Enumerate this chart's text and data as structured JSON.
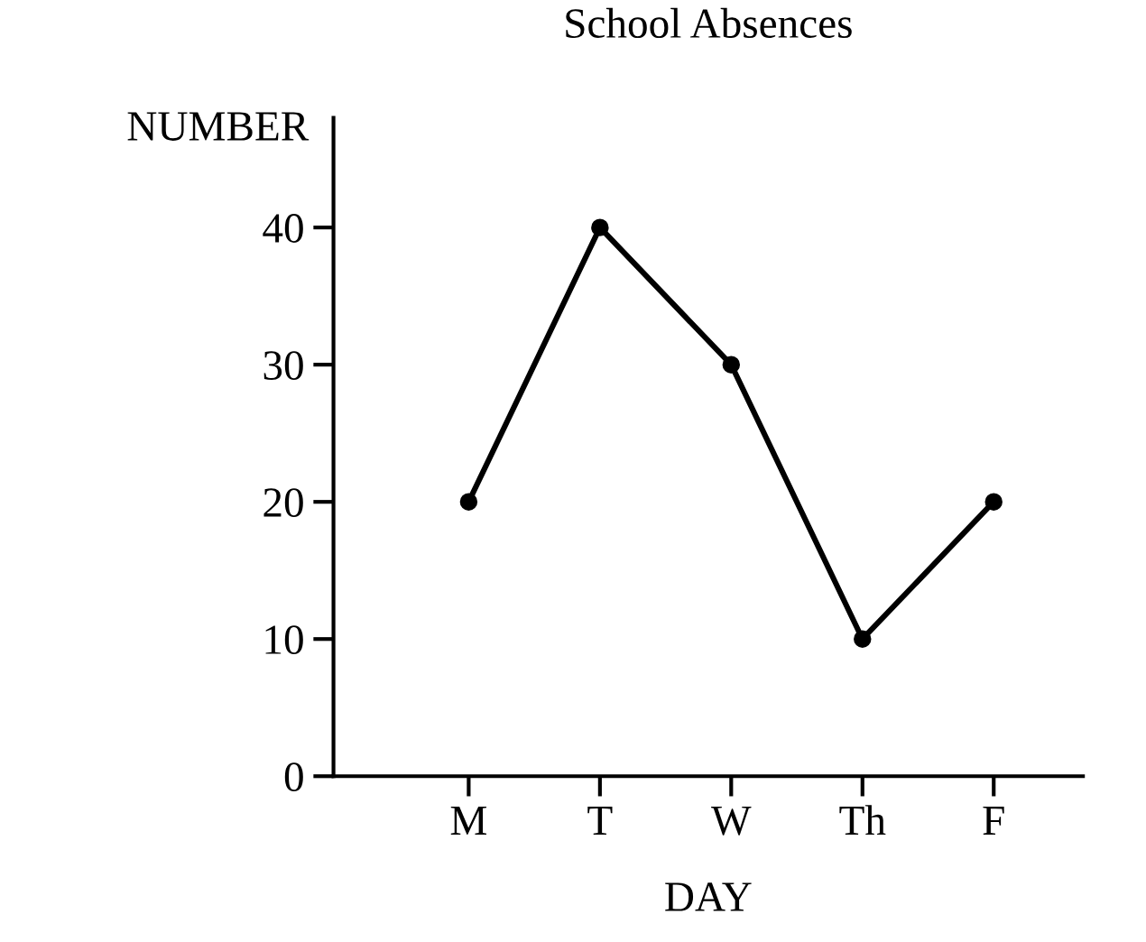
{
  "chart_data": {
    "type": "line",
    "title": "School Absences",
    "xlabel": "DAY",
    "ylabel": "NUMBER",
    "categories": [
      "M",
      "T",
      "W",
      "Th",
      "F"
    ],
    "series": [
      {
        "color": "#000000",
        "values": [
          20,
          40,
          30,
          10,
          20
        ]
      }
    ],
    "ylim": [
      0,
      48
    ],
    "yticks": [
      0,
      10,
      20,
      30,
      40
    ],
    "marker": "circle",
    "line_style": "solid",
    "grid": false,
    "legend": false
  }
}
